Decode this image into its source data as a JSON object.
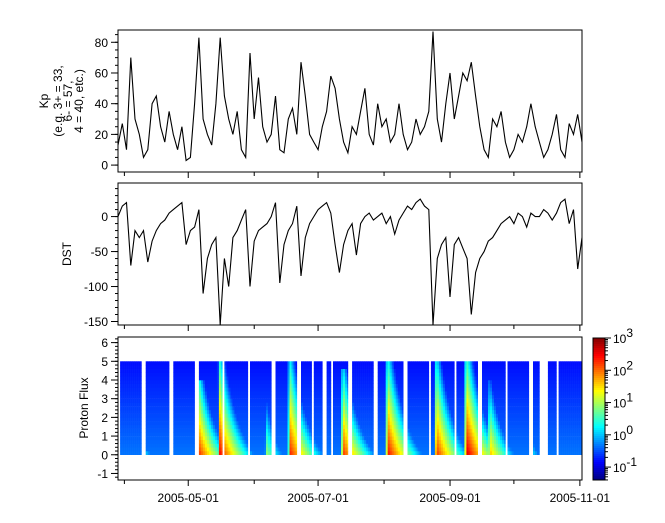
{
  "chart_data": [
    {
      "type": "line",
      "panel": "top",
      "ylabel_lines": [
        "Kp",
        "(e.g. 3+ = 33,",
        "6- = 57,",
        "4 = 40, etc.)"
      ],
      "xlim": [
        "2005-03-29",
        "2005-11-02"
      ],
      "ylim": [
        -4.5,
        88
      ],
      "yticks": [
        0,
        20,
        40,
        60,
        80
      ],
      "ytick_labels": [
        "0",
        "20",
        "40",
        "60",
        "80"
      ],
      "series_start": "2005-03-29",
      "series_step_days": 2,
      "values": [
        13,
        27,
        10,
        70,
        30,
        20,
        5,
        10,
        40,
        45,
        25,
        15,
        35,
        20,
        10,
        25,
        3,
        5,
        40,
        83,
        30,
        20,
        13,
        40,
        83,
        45,
        30,
        20,
        35,
        10,
        5,
        73,
        30,
        57,
        25,
        15,
        20,
        45,
        10,
        8,
        30,
        37,
        20,
        67,
        45,
        20,
        15,
        10,
        25,
        35,
        58,
        50,
        30,
        15,
        8,
        25,
        20,
        35,
        50,
        20,
        13,
        40,
        25,
        30,
        15,
        20,
        40,
        20,
        10,
        15,
        30,
        20,
        25,
        35,
        87,
        30,
        15,
        40,
        60,
        30,
        45,
        60,
        55,
        67,
        45,
        25,
        10,
        5,
        30,
        25,
        35,
        15,
        5,
        10,
        20,
        15,
        25,
        40,
        25,
        15,
        5,
        10,
        20,
        33,
        10,
        5,
        27,
        20,
        33,
        15
      ],
      "line_color": "#000000"
    },
    {
      "type": "line",
      "panel": "middle",
      "ylabel": "DST",
      "xlim": [
        "2005-03-29",
        "2005-11-02"
      ],
      "ylim": [
        -155,
        48
      ],
      "yticks": [
        0,
        -50,
        -100,
        -150
      ],
      "ytick_labels": [
        "0",
        "-50",
        "-100",
        "-150"
      ],
      "series_start": "2005-03-29",
      "series_step_days": 2,
      "values": [
        0,
        15,
        20,
        -70,
        -20,
        -30,
        -20,
        -65,
        -35,
        -20,
        -10,
        -5,
        5,
        10,
        15,
        20,
        -40,
        -20,
        -15,
        10,
        -110,
        -60,
        -40,
        -30,
        -155,
        -60,
        -100,
        -30,
        -20,
        -5,
        10,
        -100,
        -35,
        -20,
        -15,
        -10,
        0,
        20,
        -95,
        -40,
        -20,
        -10,
        15,
        -85,
        -30,
        -10,
        0,
        10,
        15,
        20,
        5,
        -40,
        -80,
        -40,
        -20,
        -10,
        -55,
        -10,
        0,
        5,
        -5,
        0,
        5,
        -10,
        0,
        -25,
        -5,
        5,
        15,
        10,
        20,
        25,
        15,
        10,
        -155,
        -60,
        -40,
        -30,
        -115,
        -40,
        -30,
        -45,
        -60,
        -140,
        -80,
        -60,
        -50,
        -35,
        -30,
        -20,
        -10,
        -5,
        0,
        -10,
        5,
        0,
        -15,
        5,
        0,
        0,
        10,
        5,
        -5,
        5,
        20,
        25,
        -10,
        10,
        -75,
        -30
      ],
      "line_color": "#000000"
    },
    {
      "type": "heatmap",
      "panel": "bottom",
      "ylabel": "Proton Flux",
      "xlim": [
        "2005-03-29",
        "2005-11-02"
      ],
      "ylim": [
        -1.35,
        6.3
      ],
      "yticks": [
        -1,
        0,
        1,
        2,
        3,
        4,
        5,
        6
      ],
      "ytick_labels": [
        "-1",
        "0",
        "1",
        "2",
        "3",
        "4",
        "5",
        "6"
      ],
      "y_range_filled": [
        0,
        5
      ],
      "color_scale": "log",
      "colormap": "jet",
      "clim_log10": [
        -1.4,
        3
      ],
      "colorbar_ticks_log10": [
        -1,
        0,
        1,
        2,
        3
      ],
      "colorbar_tick_labels": [
        {
          "base": "10",
          "exp": "-1"
        },
        {
          "base": "10",
          "exp": "0"
        },
        {
          "base": "10",
          "exp": "1"
        },
        {
          "base": "10",
          "exp": "2"
        },
        {
          "base": "10",
          "exp": "3"
        }
      ],
      "background_log10_flux": -0.8,
      "data_segments": [
        [
          "2005-03-30",
          "2005-04-09"
        ],
        [
          "2005-04-11",
          "2005-04-22"
        ],
        [
          "2005-04-24",
          "2005-05-04"
        ],
        [
          "2005-05-06",
          "2005-05-17"
        ],
        [
          "2005-05-18",
          "2005-05-29"
        ],
        [
          "2005-05-30",
          "2005-06-09"
        ],
        [
          "2005-06-11",
          "2005-06-21"
        ],
        [
          "2005-06-23",
          "2005-06-28"
        ],
        [
          "2005-06-29",
          "2005-07-03"
        ],
        [
          "2005-07-05",
          "2005-07-07"
        ],
        [
          "2005-07-08",
          "2005-07-15"
        ],
        [
          "2005-07-17",
          "2005-07-27"
        ],
        [
          "2005-07-29",
          "2005-08-10"
        ],
        [
          "2005-08-12",
          "2005-08-22"
        ],
        [
          "2005-08-23",
          "2005-09-03"
        ],
        [
          "2005-09-04",
          "2005-09-14"
        ],
        [
          "2005-09-16",
          "2005-09-27"
        ],
        [
          "2005-09-28",
          "2005-10-08"
        ],
        [
          "2005-10-10",
          "2005-10-13"
        ],
        [
          "2005-10-17",
          "2005-10-21"
        ],
        [
          "2005-10-22",
          "2005-11-02"
        ]
      ],
      "events": [
        {
          "date": "2005-04-10",
          "peak_log10_flux": 0.3,
          "max_y": 1.2
        },
        {
          "date": "2005-05-06",
          "peak_log10_flux": 2.2,
          "max_y": 4
        },
        {
          "date": "2005-05-15",
          "peak_log10_flux": 2.5,
          "max_y": 5
        },
        {
          "date": "2005-06-06",
          "peak_log10_flux": 1.0,
          "max_y": 4
        },
        {
          "date": "2005-06-17",
          "peak_log10_flux": 2.4,
          "max_y": 5
        },
        {
          "date": "2005-07-12",
          "peak_log10_flux": 2.3,
          "max_y": 4.5
        },
        {
          "date": "2005-08-02",
          "peak_log10_flux": 2.5,
          "max_y": 5
        },
        {
          "date": "2005-08-25",
          "peak_log10_flux": 2.3,
          "max_y": 5
        },
        {
          "date": "2005-09-08",
          "peak_log10_flux": 2.7,
          "max_y": 5
        },
        {
          "date": "2005-09-19",
          "peak_log10_flux": 1.7,
          "max_y": 4
        },
        {
          "date": "2005-10-08",
          "peak_log10_flux": 0.4,
          "max_y": 3
        }
      ]
    }
  ],
  "x_axis": {
    "major_ticks": [
      "2005-05-01",
      "2005-07-01",
      "2005-09-01",
      "2005-11-01"
    ],
    "major_tick_labels": [
      "2005-05-01",
      "2005-07-01",
      "2005-09-01",
      "2005-11-01"
    ],
    "minor_ticks": [
      "2005-04-01",
      "2005-06-01",
      "2005-08-01",
      "2005-10-01"
    ]
  }
}
